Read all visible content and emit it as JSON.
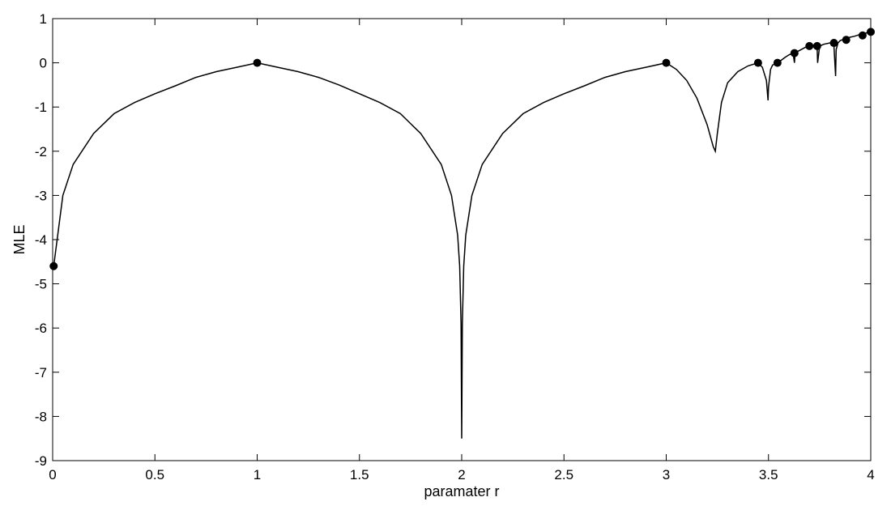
{
  "chart_data": {
    "type": "line",
    "title": "",
    "xlabel": "paramater r",
    "ylabel": "MLE",
    "xlim": [
      0,
      4
    ],
    "ylim": [
      -9,
      1
    ],
    "xticks": [
      0,
      0.5,
      1,
      1.5,
      2,
      2.5,
      3,
      3.5,
      4
    ],
    "xtick_labels": [
      "0",
      "0.5",
      "1",
      "1.5",
      "2",
      "2.5",
      "3",
      "3.5",
      "4"
    ],
    "yticks": [
      1,
      0,
      -1,
      -2,
      -3,
      -4,
      -5,
      -6,
      -7,
      -8,
      -9
    ],
    "ytick_labels": [
      "1",
      "0",
      "-1",
      "-2",
      "-3",
      "-4",
      "-5",
      "-6",
      "-7",
      "-8",
      "-9"
    ],
    "grid": false,
    "legend": "none",
    "colors": {
      "line": "#000000",
      "marker": "#000000",
      "background": "#ffffff"
    },
    "series": [
      {
        "kind": "line",
        "x": [
          0.005,
          0.05,
          0.1,
          0.2,
          0.3,
          0.4,
          0.5,
          0.6,
          0.7,
          0.8,
          0.9,
          1.0,
          1.1,
          1.2,
          1.3,
          1.4,
          1.5,
          1.6,
          1.7,
          1.8,
          1.9,
          1.95,
          1.98,
          1.99,
          1.997,
          2.0,
          2.003,
          2.01,
          2.02,
          2.05,
          2.1,
          2.2,
          2.3,
          2.4,
          2.5,
          2.6,
          2.7,
          2.8,
          2.9,
          3.0,
          3.05,
          3.1,
          3.15,
          3.2,
          3.23,
          3.24,
          3.25,
          3.27,
          3.3,
          3.35,
          3.4,
          3.449,
          3.47,
          3.49,
          3.498,
          3.5,
          3.51,
          3.52,
          3.544,
          3.56,
          3.58,
          3.6,
          3.62,
          3.627,
          3.63,
          3.64,
          3.66,
          3.68,
          3.7,
          3.72,
          3.738,
          3.74,
          3.75,
          3.77,
          3.8,
          3.82,
          3.828,
          3.831,
          3.84,
          3.85,
          3.86,
          3.88,
          3.9,
          3.92,
          3.94,
          3.96,
          3.98,
          4.0
        ],
        "y": [
          -4.6,
          -3.0,
          -2.3,
          -1.6,
          -1.15,
          -0.9,
          -0.7,
          -0.52,
          -0.33,
          -0.2,
          -0.1,
          0.0,
          -0.1,
          -0.2,
          -0.33,
          -0.5,
          -0.7,
          -0.9,
          -1.15,
          -1.6,
          -2.3,
          -3.0,
          -3.9,
          -4.6,
          -5.9,
          -8.5,
          -5.9,
          -4.6,
          -3.9,
          -3.0,
          -2.3,
          -1.6,
          -1.15,
          -0.9,
          -0.7,
          -0.52,
          -0.33,
          -0.2,
          -0.1,
          0.0,
          -0.15,
          -0.4,
          -0.8,
          -1.4,
          -1.9,
          -2.0,
          -1.6,
          -0.9,
          -0.45,
          -0.2,
          -0.07,
          0.0,
          -0.1,
          -0.4,
          -0.85,
          -0.55,
          -0.15,
          -0.05,
          0.0,
          0.05,
          0.12,
          0.18,
          0.22,
          0.0,
          0.2,
          0.25,
          0.3,
          0.35,
          0.38,
          0.4,
          0.35,
          0.0,
          0.38,
          0.42,
          0.45,
          0.4,
          -0.3,
          0.3,
          0.45,
          0.5,
          0.52,
          0.55,
          0.58,
          0.6,
          0.63,
          0.65,
          0.68,
          0.7
        ]
      },
      {
        "kind": "scatter",
        "x": [
          0.005,
          1.0,
          3.0,
          3.449,
          3.544,
          3.627,
          3.7,
          3.738,
          3.82,
          3.88,
          3.96,
          4.0
        ],
        "y": [
          -4.6,
          0.0,
          0.0,
          0.0,
          0.0,
          0.22,
          0.38,
          0.38,
          0.45,
          0.52,
          0.62,
          0.7
        ]
      }
    ]
  }
}
